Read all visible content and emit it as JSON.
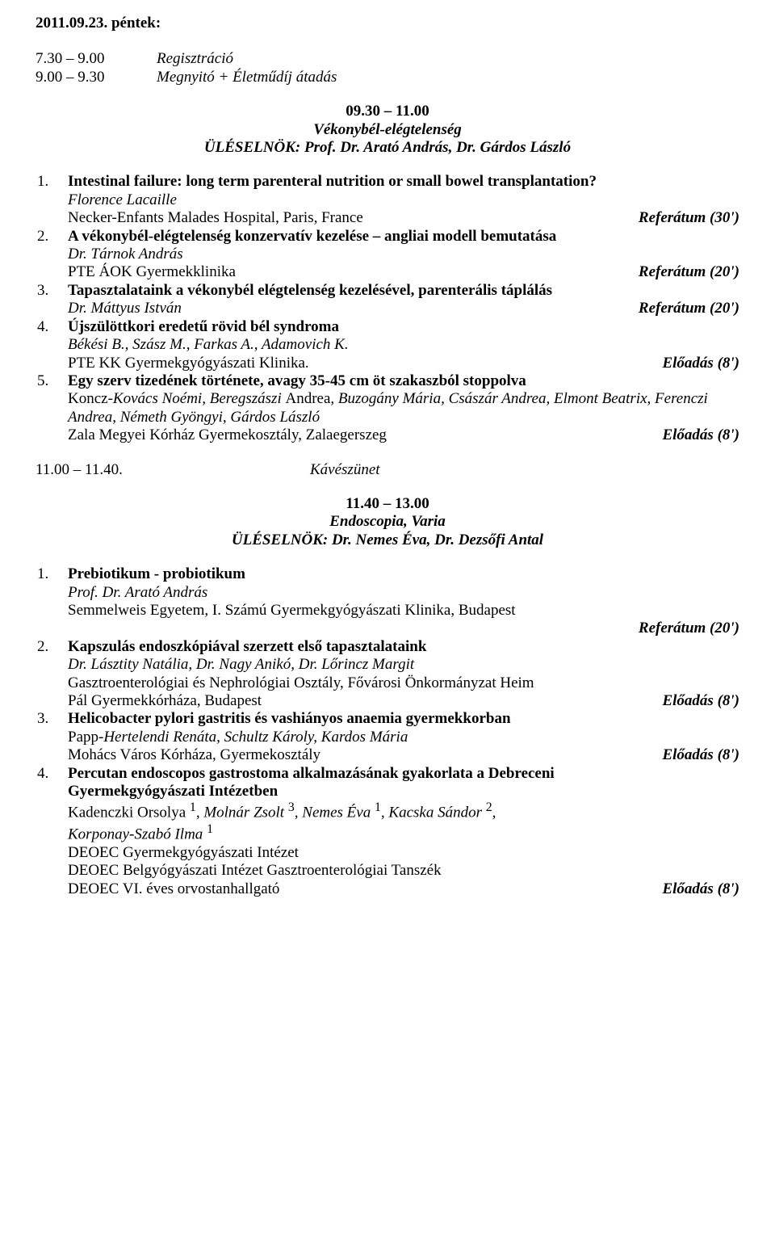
{
  "colors": {
    "text": "#000000",
    "background": "#ffffff"
  },
  "date_heading": "2011.09.23. péntek:",
  "schedule": [
    {
      "time": "7.30 – 9.00",
      "label": "Regisztráció"
    },
    {
      "time": "9.00 – 9.30",
      "label": "Megnyitó + Életműdíj átadás"
    }
  ],
  "session1": {
    "time": "09.30 – 11.00",
    "title": "Vékonybél-elégtelenség",
    "chair": "ÜLÉSELNÖK: Prof. Dr. Arató András, Dr. Gárdos László",
    "items": [
      {
        "num": "1.",
        "title": "Intestinal failure: long term parenteral nutrition or small bowel transplantation?",
        "authors": "Florence Lacaille",
        "affil": "Necker-Enfants Malades Hospital, Paris, France",
        "tag": "Referátum (30')"
      },
      {
        "num": "2.",
        "title": "A vékonybél-elégtelenség konzervatív kezelése – angliai modell bemutatása",
        "authors": "Dr. Tárnok András",
        "affil": "PTE ÁOK Gyermekklinika",
        "tag": "Referátum (20')"
      },
      {
        "num": "3.",
        "title": "Tapasztalataink a vékonybél elégtelenség kezelésével, parenterális táplálás",
        "authors": "Dr. Máttyus István",
        "affil": "",
        "tag": "Referátum (20')"
      },
      {
        "num": "4.",
        "title": "Újszülöttkori eredetű rövid bél syndroma",
        "authors": "Békési B., Szász M., Farkas A., Adamovich K.",
        "affil": "PTE KK Gyermekgyógyászati Klinika.",
        "tag": "Előadás (8')"
      },
      {
        "num": "5.",
        "title": "Egy szerv tizedének története, avagy 35-45 cm öt szakaszból stoppolva",
        "authors": "Koncz-Kovács Noémi, Beregszászi Andrea, Buzogány Mária, Császár Andrea, Elmont Beatrix, Ferenczi Andrea, Németh Gyöngyi, Gárdos László",
        "affil": "Zala Megyei Kórház Gyermekosztály, Zalaegerszeg",
        "tag": "Előadás (8')"
      }
    ]
  },
  "break": {
    "time": "11.00 – 11.40.",
    "label": "Kávészünet"
  },
  "session2": {
    "time": "11.40 – 13.00",
    "title": "Endoscopia, Varia",
    "chair": "ÜLÉSELNÖK: Dr. Nemes Éva, Dr. Dezsőfi Antal",
    "items": [
      {
        "num": "1.",
        "title": "Prebiotikum - probiotikum",
        "authors": "Prof. Dr. Arató András",
        "affil": "Semmelweis Egyetem, I. Számú Gyermekgyógyászati Klinika, Budapest",
        "tag": "Referátum (20')",
        "tag_below": true
      },
      {
        "num": "2.",
        "title": "Kapszulás endoszkópiával szerzett első tapasztalataink",
        "authors": "Dr. Lásztity Natália, Dr. Nagy Anikó, Dr. Lőrincz Margit",
        "affil_lines": [
          "Gasztroenterológiai és Nephrológiai Osztály, Fővárosi Önkormányzat Heim",
          "Pál Gyermekkórháza, Budapest"
        ],
        "tag": "Előadás (8')"
      },
      {
        "num": "3.",
        "title": "Helicobacter pylori gastritis és vashiányos anaemia gyermekkorban",
        "authors": "Papp-Hertelendi Renáta, Schultz Károly, Kardos Mária",
        "affil": "Mohács Város Kórháza, Gyermekosztály",
        "tag": "Előadás (8')"
      },
      {
        "num": "4.",
        "title_full": "Percutan endoscopos gastrostoma alkalmazásának gyakorlata a Debreceni Gyermekgyógyászati Intézetben",
        "authors_html": "Kadenczki Orsolya ¹, Molnár Zsolt ³, Nemes Éva ¹, Kacska Sándor ²,",
        "authors_line2": "Korponay-Szabó Ilma ¹",
        "affil_lines": [
          "DEOEC Gyermekgyógyászati Intézet",
          "DEOEC Belgyógyászati Intézet Gasztroenterológiai Tanszék",
          "DEOEC VI. éves orvostanhallgató"
        ],
        "tag": "Előadás (8')"
      }
    ]
  }
}
